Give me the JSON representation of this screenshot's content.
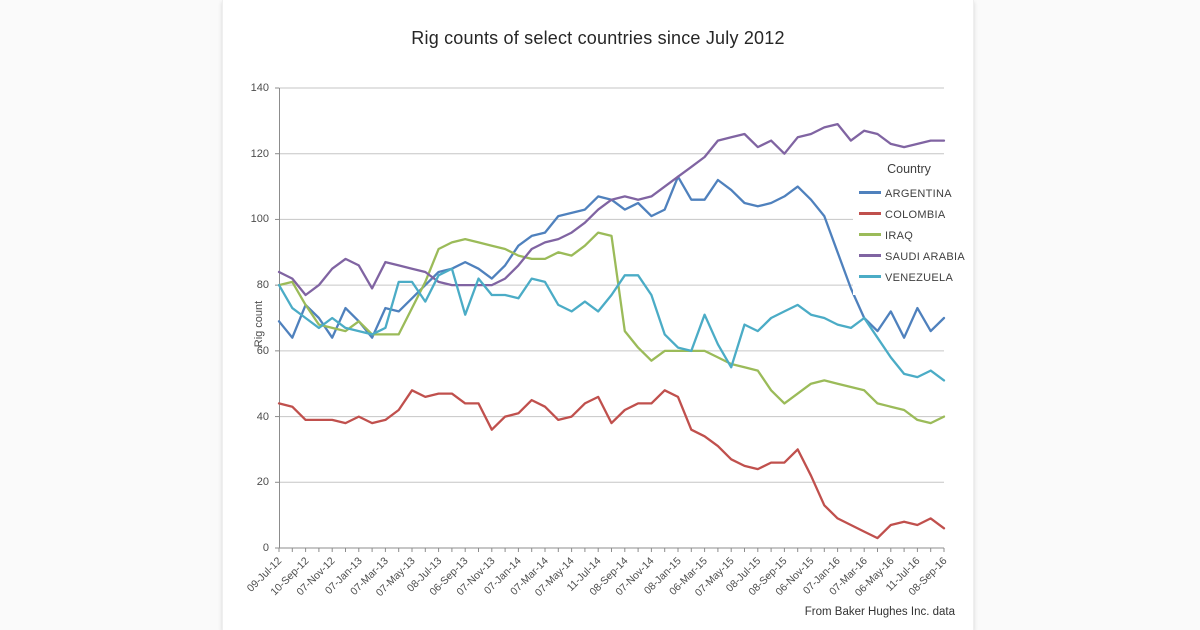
{
  "title": "Rig counts of select countries since July 2012",
  "footnote": "From Baker Hughes Inc. data",
  "legend": {
    "title": "Country",
    "position": "right-inside"
  },
  "y_axis": {
    "label": "Rig count",
    "ticks": [
      0,
      20,
      40,
      60,
      80,
      100,
      120,
      140
    ]
  },
  "x_axis": {
    "tick_labels": [
      "09-Jul-12",
      "10-Sep-12",
      "07-Nov-12",
      "07-Jan-13",
      "07-Mar-13",
      "07-May-13",
      "08-Jul-13",
      "06-Sep-13",
      "07-Nov-13",
      "07-Jan-14",
      "07-Mar-14",
      "07-May-14",
      "11-Jul-14",
      "08-Sep-14",
      "07-Nov-14",
      "08-Jan-15",
      "06-Mar-15",
      "07-May-15",
      "08-Jul-15",
      "08-Sep-15",
      "06-Nov-15",
      "07-Jan-16",
      "07-Mar-16",
      "06-May-16",
      "11-Jul-16",
      "08-Sep-16"
    ],
    "label_every_n_points": 2
  },
  "colors": {
    "grid": "#c6c6c6",
    "axis": "#8c8c8c",
    "title_text": "#262626",
    "tick_text": "#4d4d4d"
  },
  "chart_data": {
    "type": "line",
    "title": "Rig counts of select countries since July 2012",
    "xlabel": "",
    "ylabel": "Rig count",
    "ylim": [
      0,
      140
    ],
    "y_tick_interval": 20,
    "grid": "horizontal",
    "legend_position": "right-inside",
    "x_tick_labels": [
      "09-Jul-12",
      "10-Sep-12",
      "07-Nov-12",
      "07-Jan-13",
      "07-Mar-13",
      "07-May-13",
      "08-Jul-13",
      "06-Sep-13",
      "07-Nov-13",
      "07-Jan-14",
      "07-Mar-14",
      "07-May-14",
      "11-Jul-14",
      "08-Sep-14",
      "07-Nov-14",
      "08-Jan-15",
      "06-Mar-15",
      "07-May-15",
      "08-Jul-15",
      "08-Sep-15",
      "06-Nov-15",
      "07-Jan-16",
      "07-Mar-16",
      "06-May-16",
      "11-Jul-16",
      "08-Sep-16"
    ],
    "points_are_monthly": true,
    "n_points": 51,
    "series": [
      {
        "name": "ARGENTINA",
        "color": "#4F81BD",
        "values": [
          69,
          64,
          74,
          70,
          64,
          73,
          69,
          64,
          73,
          72,
          76,
          80,
          84,
          85,
          87,
          85,
          82,
          86,
          92,
          95,
          96,
          101,
          102,
          103,
          107,
          106,
          103,
          105,
          101,
          103,
          113,
          106,
          106,
          112,
          109,
          105,
          104,
          105,
          107,
          110,
          106,
          101,
          90,
          79,
          70,
          66,
          72,
          64,
          73,
          66,
          70
        ]
      },
      {
        "name": "COLOMBIA",
        "color": "#C0504D",
        "values": [
          44,
          43,
          39,
          39,
          39,
          38,
          40,
          38,
          39,
          42,
          48,
          46,
          47,
          47,
          44,
          44,
          36,
          40,
          41,
          45,
          43,
          39,
          40,
          44,
          46,
          38,
          42,
          44,
          44,
          48,
          46,
          36,
          34,
          31,
          27,
          25,
          24,
          26,
          26,
          30,
          22,
          13,
          9,
          7,
          5,
          3,
          7,
          8,
          7,
          9,
          6
        ]
      },
      {
        "name": "IRAQ",
        "color": "#9BBB59",
        "values": [
          80,
          81,
          74,
          68,
          67,
          66,
          69,
          65,
          65,
          65,
          73,
          81,
          91,
          93,
          94,
          93,
          92,
          91,
          89,
          88,
          88,
          90,
          89,
          92,
          96,
          95,
          66,
          61,
          57,
          60,
          60,
          60,
          60,
          58,
          56,
          55,
          54,
          48,
          44,
          47,
          50,
          51,
          50,
          49,
          48,
          44,
          43,
          42,
          39,
          38,
          40
        ]
      },
      {
        "name": "SAUDI ARABIA",
        "color": "#8064A2",
        "values": [
          84,
          82,
          77,
          80,
          85,
          88,
          86,
          79,
          87,
          86,
          85,
          84,
          81,
          80,
          80,
          80,
          80,
          82,
          86,
          91,
          93,
          94,
          96,
          99,
          103,
          106,
          107,
          106,
          107,
          110,
          113,
          116,
          119,
          124,
          125,
          126,
          122,
          124,
          120,
          125,
          126,
          128,
          129,
          124,
          127,
          126,
          123,
          122,
          123,
          124,
          124
        ]
      },
      {
        "name": "VENEZUELA",
        "color": "#4BACC6",
        "values": [
          80,
          73,
          70,
          67,
          70,
          67,
          66,
          65,
          67,
          81,
          81,
          75,
          83,
          85,
          71,
          82,
          77,
          77,
          76,
          82,
          81,
          74,
          72,
          75,
          72,
          77,
          83,
          83,
          77,
          65,
          61,
          60,
          71,
          62,
          55,
          68,
          66,
          70,
          72,
          74,
          71,
          70,
          68,
          67,
          70,
          64,
          58,
          53,
          52,
          54,
          51
        ]
      }
    ]
  }
}
